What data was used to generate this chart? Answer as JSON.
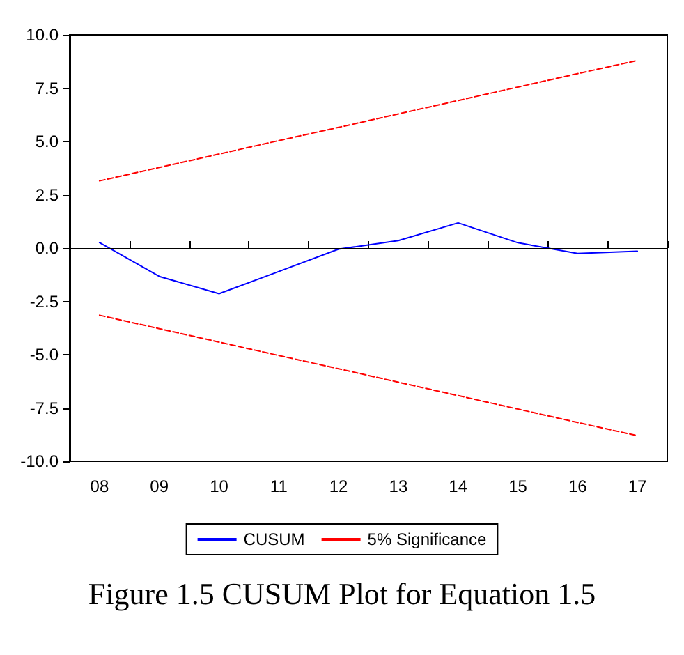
{
  "chart_data": {
    "type": "line",
    "title": "Figure 1.5 CUSUM Plot for Equation 1.5",
    "categories": [
      "08",
      "09",
      "10",
      "11",
      "12",
      "13",
      "14",
      "15",
      "16",
      "17"
    ],
    "series": [
      {
        "name": "CUSUM",
        "color": "#0000ff",
        "values": [
          0.26,
          -1.33,
          -2.14,
          -1.1,
          -0.05,
          0.35,
          1.18,
          0.25,
          -0.25,
          -0.15
        ]
      },
      {
        "name": "5% Significance",
        "color": "#ff0000",
        "line_style": "dashed",
        "values": [
          3.15,
          3.78,
          4.41,
          5.04,
          5.66,
          6.29,
          6.92,
          7.55,
          8.18,
          8.8
        ]
      },
      {
        "color": "#ff0000",
        "line_style": "dashed",
        "values": [
          -3.15,
          -3.78,
          -4.41,
          -5.04,
          -5.66,
          -6.29,
          -6.92,
          -7.55,
          -8.18,
          -8.8
        ]
      }
    ],
    "ylim": [
      -10,
      10
    ],
    "yticks": [
      {
        "value": -10,
        "label": "-10.0"
      },
      -7.5,
      {
        "value": -5,
        "label": "-5.0"
      },
      -2.5,
      {
        "value": 0,
        "label": "0.0"
      },
      2.5,
      {
        "value": 5,
        "label": "5.0"
      },
      7.5,
      {
        "value": 10,
        "label": "10.0"
      }
    ],
    "ref_lines": [
      {
        "axis": "y",
        "value": 0,
        "color": "#000000"
      }
    ],
    "grid": false,
    "legend": "bottom",
    "marker": "none",
    "line_style": "solid"
  }
}
